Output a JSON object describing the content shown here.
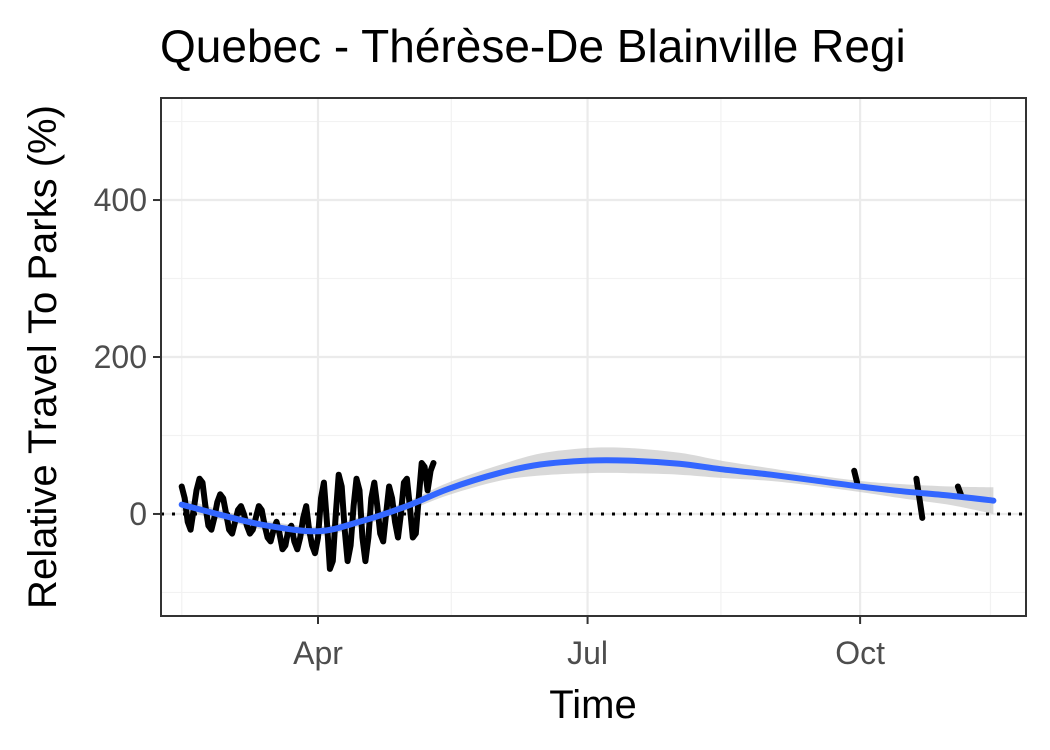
{
  "chart_data": {
    "type": "line",
    "title": "Quebec - Thérèse-De Blainville Regi",
    "xlabel": "Time",
    "ylabel": "Relative Travel To Parks (%)",
    "ylim": [
      -130,
      530
    ],
    "xlim": [
      "2020-02-08",
      "2020-11-26"
    ],
    "y_ticks": [
      0,
      200,
      400
    ],
    "x_ticks": [
      {
        "date": "2020-04-01",
        "label": "Apr"
      },
      {
        "date": "2020-07-01",
        "label": "Jul"
      },
      {
        "date": "2020-10-01",
        "label": "Oct"
      }
    ],
    "grid": true,
    "reference_line": {
      "y": 0,
      "style": "dotted"
    },
    "series": [
      {
        "role": "observed",
        "color": "#000000",
        "segments": [
          [
            [
              "2020-02-15",
              35
            ],
            [
              "2020-02-16",
              20
            ],
            [
              "2020-02-17",
              -10
            ],
            [
              "2020-02-18",
              -20
            ],
            [
              "2020-02-19",
              5
            ],
            [
              "2020-02-20",
              30
            ],
            [
              "2020-02-21",
              45
            ],
            [
              "2020-02-22",
              40
            ],
            [
              "2020-02-23",
              10
            ],
            [
              "2020-02-24",
              -15
            ],
            [
              "2020-02-25",
              -20
            ],
            [
              "2020-02-26",
              -5
            ],
            [
              "2020-02-27",
              15
            ],
            [
              "2020-02-28",
              25
            ],
            [
              "2020-02-29",
              20
            ],
            [
              "2020-03-01",
              0
            ],
            [
              "2020-03-02",
              -20
            ],
            [
              "2020-03-03",
              -25
            ],
            [
              "2020-03-04",
              -10
            ],
            [
              "2020-03-05",
              5
            ],
            [
              "2020-03-06",
              10
            ],
            [
              "2020-03-07",
              0
            ],
            [
              "2020-03-08",
              -15
            ],
            [
              "2020-03-09",
              -25
            ],
            [
              "2020-03-10",
              -20
            ],
            [
              "2020-03-11",
              -5
            ],
            [
              "2020-03-12",
              10
            ],
            [
              "2020-03-13",
              5
            ],
            [
              "2020-03-14",
              -15
            ],
            [
              "2020-03-15",
              -30
            ],
            [
              "2020-03-16",
              -35
            ],
            [
              "2020-03-17",
              -20
            ],
            [
              "2020-03-18",
              -10
            ],
            [
              "2020-03-19",
              -25
            ],
            [
              "2020-03-20",
              -45
            ],
            [
              "2020-03-21",
              -40
            ],
            [
              "2020-03-22",
              -20
            ],
            [
              "2020-03-23",
              -15
            ],
            [
              "2020-03-24",
              -35
            ],
            [
              "2020-03-25",
              -45
            ],
            [
              "2020-03-26",
              -30
            ],
            [
              "2020-03-27",
              -5
            ],
            [
              "2020-03-28",
              10
            ],
            [
              "2020-03-29",
              -20
            ],
            [
              "2020-03-30",
              -40
            ],
            [
              "2020-03-31",
              -50
            ],
            [
              "2020-04-01",
              -30
            ],
            [
              "2020-04-02",
              20
            ],
            [
              "2020-04-03",
              40
            ],
            [
              "2020-04-04",
              -10
            ],
            [
              "2020-04-05",
              -70
            ],
            [
              "2020-04-06",
              -60
            ],
            [
              "2020-04-07",
              0
            ],
            [
              "2020-04-08",
              50
            ],
            [
              "2020-04-09",
              35
            ],
            [
              "2020-04-10",
              -20
            ],
            [
              "2020-04-11",
              -60
            ],
            [
              "2020-04-12",
              -40
            ],
            [
              "2020-04-13",
              10
            ],
            [
              "2020-04-14",
              45
            ],
            [
              "2020-04-15",
              30
            ],
            [
              "2020-04-16",
              -30
            ],
            [
              "2020-04-17",
              -60
            ],
            [
              "2020-04-18",
              -30
            ],
            [
              "2020-04-19",
              20
            ],
            [
              "2020-04-20",
              40
            ],
            [
              "2020-04-21",
              10
            ],
            [
              "2020-04-22",
              -25
            ],
            [
              "2020-04-23",
              -35
            ],
            [
              "2020-04-24",
              0
            ],
            [
              "2020-04-25",
              35
            ],
            [
              "2020-04-26",
              20
            ],
            [
              "2020-04-27",
              -10
            ],
            [
              "2020-04-28",
              -30
            ],
            [
              "2020-04-29",
              0
            ],
            [
              "2020-04-30",
              40
            ],
            [
              "2020-05-01",
              45
            ],
            [
              "2020-05-02",
              10
            ],
            [
              "2020-05-03",
              -30
            ],
            [
              "2020-05-04",
              -25
            ],
            [
              "2020-05-05",
              20
            ],
            [
              "2020-05-06",
              65
            ],
            [
              "2020-05-07",
              60
            ],
            [
              "2020-05-08",
              30
            ],
            [
              "2020-05-09",
              55
            ],
            [
              "2020-05-10",
              65
            ]
          ],
          [
            [
              "2020-09-29",
              55
            ],
            [
              "2020-09-30",
              40
            ]
          ],
          [
            [
              "2020-10-20",
              45
            ],
            [
              "2020-10-21",
              20
            ],
            [
              "2020-10-22",
              -5
            ]
          ],
          [
            [
              "2020-11-03",
              35
            ],
            [
              "2020-11-04",
              25
            ]
          ]
        ]
      },
      {
        "role": "smoothed trend",
        "color": "#3366ff",
        "points": [
          [
            "2020-02-15",
            12
          ],
          [
            "2020-03-01",
            -3
          ],
          [
            "2020-03-15",
            -15
          ],
          [
            "2020-04-01",
            -22
          ],
          [
            "2020-04-15",
            -10
          ],
          [
            "2020-05-01",
            10
          ],
          [
            "2020-05-15",
            32
          ],
          [
            "2020-06-01",
            52
          ],
          [
            "2020-06-15",
            63
          ],
          [
            "2020-07-01",
            68
          ],
          [
            "2020-07-15",
            68
          ],
          [
            "2020-08-01",
            64
          ],
          [
            "2020-08-15",
            57
          ],
          [
            "2020-09-01",
            50
          ],
          [
            "2020-09-15",
            43
          ],
          [
            "2020-10-01",
            35
          ],
          [
            "2020-10-15",
            29
          ],
          [
            "2020-11-01",
            23
          ],
          [
            "2020-11-15",
            17
          ]
        ],
        "ribbon_halfwidth": [
          8,
          6,
          6,
          6,
          6,
          6,
          8,
          10,
          14,
          16,
          16,
          14,
          11,
          8,
          7,
          7,
          9,
          12,
          17
        ],
        "ribbon_color": "#bfbfbf"
      }
    ]
  }
}
